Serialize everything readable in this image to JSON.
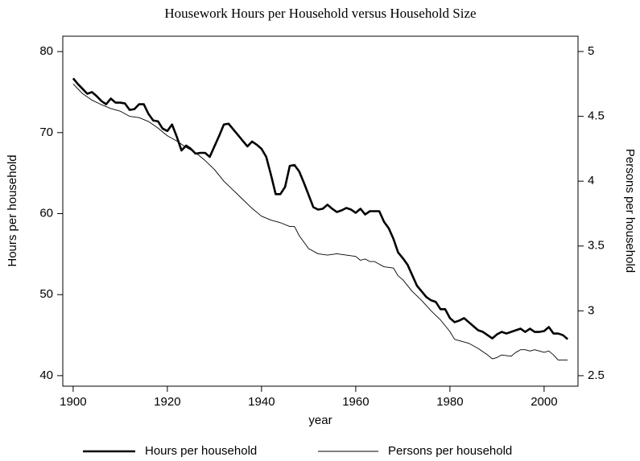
{
  "chart_data": {
    "type": "line",
    "title": "Housework Hours per Household  versus Household Size",
    "xlabel": "year",
    "ylabel": "Hours per household",
    "y2label": "Persons per household",
    "xlim": [
      1897.8,
      2007.2
    ],
    "xticks": [
      1900,
      1920,
      1940,
      1960,
      1980,
      2000
    ],
    "ylim": [
      38.7,
      81.9
    ],
    "yticks": [
      40,
      50,
      60,
      70,
      80
    ],
    "y2lim": [
      2.419,
      5.118
    ],
    "y2ticks": [
      2.5,
      3,
      3.5,
      4,
      4.5,
      5
    ],
    "legend": "bottom",
    "series": [
      {
        "name": "Hours per household",
        "color": "#000000",
        "line_width": 2.6,
        "axis": "y",
        "x": [
          1900,
          1901,
          1902,
          1903,
          1904,
          1905,
          1906,
          1907,
          1908,
          1909,
          1910,
          1911,
          1912,
          1913,
          1914,
          1915,
          1916,
          1917,
          1918,
          1919,
          1920,
          1921,
          1922,
          1923,
          1924,
          1925,
          1926,
          1927,
          1928,
          1929,
          1930,
          1931,
          1932,
          1933,
          1934,
          1935,
          1936,
          1937,
          1938,
          1939,
          1940,
          1941,
          1942,
          1943,
          1944,
          1945,
          1946,
          1947,
          1948,
          1949,
          1950,
          1951,
          1952,
          1953,
          1954,
          1955,
          1956,
          1957,
          1958,
          1959,
          1960,
          1961,
          1962,
          1963,
          1964,
          1965,
          1966,
          1967,
          1968,
          1969,
          1970,
          1971,
          1972,
          1973,
          1974,
          1975,
          1976,
          1977,
          1978,
          1979,
          1980,
          1981,
          1982,
          1983,
          1984,
          1985,
          1986,
          1987,
          1988,
          1989,
          1990,
          1991,
          1992,
          1993,
          1994,
          1995,
          1996,
          1997,
          1998,
          1999,
          2000,
          2001,
          2002,
          2003,
          2004,
          2005
        ],
        "values": [
          76.7,
          76.0,
          75.4,
          74.8,
          75.0,
          74.5,
          73.9,
          73.5,
          74.2,
          73.7,
          73.7,
          73.6,
          72.8,
          72.9,
          73.5,
          73.5,
          72.3,
          71.5,
          71.4,
          70.5,
          70.2,
          71.0,
          69.5,
          67.8,
          68.4,
          68.0,
          67.4,
          67.5,
          67.5,
          67.0,
          68.3,
          69.6,
          71.0,
          71.1,
          70.4,
          69.7,
          69.0,
          68.3,
          68.9,
          68.5,
          68.0,
          67.0,
          64.8,
          62.4,
          62.4,
          63.3,
          65.9,
          66.0,
          65.2,
          63.8,
          62.3,
          60.8,
          60.5,
          60.6,
          61.1,
          60.6,
          60.2,
          60.4,
          60.7,
          60.5,
          60.1,
          60.6,
          59.9,
          60.3,
          60.3,
          60.3,
          59.0,
          58.2,
          56.9,
          55.2,
          54.5,
          53.7,
          52.4,
          51.1,
          50.4,
          49.7,
          49.3,
          49.1,
          48.2,
          48.2,
          47.1,
          46.6,
          46.8,
          47.1,
          46.6,
          46.1,
          45.6,
          45.4,
          45.0,
          44.6,
          45.1,
          45.4,
          45.2,
          45.4,
          45.6,
          45.8,
          45.4,
          45.8,
          45.4,
          45.4,
          45.5,
          46.0,
          45.2,
          45.2,
          45.0,
          44.5
        ]
      },
      {
        "name": "Persons per household",
        "color": "#000000",
        "line_width": 0.9,
        "axis": "y2",
        "x": [
          1900,
          1902,
          1904,
          1906,
          1908,
          1910,
          1912,
          1914,
          1916,
          1918,
          1920,
          1922,
          1924,
          1926,
          1928,
          1930,
          1932,
          1934,
          1936,
          1938,
          1940,
          1942,
          1944,
          1946,
          1947,
          1948,
          1950,
          1952,
          1954,
          1956,
          1958,
          1960,
          1961,
          1962,
          1963,
          1964,
          1965,
          1966,
          1968,
          1969,
          1970,
          1972,
          1974,
          1976,
          1978,
          1980,
          1981,
          1983,
          1984,
          1986,
          1988,
          1989,
          1990,
          1991,
          1993,
          1994,
          1995,
          1996,
          1997,
          1998,
          2000,
          2001,
          2002,
          2003,
          2005
        ],
        "values": [
          4.75,
          4.675,
          4.625,
          4.59,
          4.56,
          4.54,
          4.5,
          4.49,
          4.46,
          4.41,
          4.35,
          4.31,
          4.26,
          4.22,
          4.16,
          4.09,
          4.0,
          3.93,
          3.86,
          3.79,
          3.73,
          3.7,
          3.68,
          3.65,
          3.65,
          3.58,
          3.48,
          3.44,
          3.43,
          3.44,
          3.43,
          3.42,
          3.39,
          3.4,
          3.38,
          3.38,
          3.36,
          3.34,
          3.33,
          3.27,
          3.24,
          3.15,
          3.08,
          3.0,
          2.93,
          2.84,
          2.78,
          2.76,
          2.75,
          2.71,
          2.66,
          2.63,
          2.64,
          2.66,
          2.65,
          2.68,
          2.7,
          2.7,
          2.69,
          2.7,
          2.68,
          2.69,
          2.66,
          2.62,
          2.62
        ]
      }
    ]
  }
}
